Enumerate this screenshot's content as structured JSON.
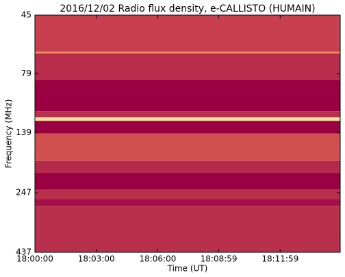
{
  "chart_data": {
    "type": "spectrogram",
    "title": "2016/12/02  Radio flux density, e-CALLISTO (HUMAIN)",
    "x_label": "Time (UT)",
    "y_label": "Frequency (MHz)",
    "xlim": [
      0,
      895
    ],
    "xticks": [
      {
        "value": 0,
        "label": "18:00:00"
      },
      {
        "value": 180,
        "label": "18:03:00"
      },
      {
        "value": 360,
        "label": "18:06:00"
      },
      {
        "value": 539,
        "label": "18:08:59"
      },
      {
        "value": 719,
        "label": "18:11:59"
      }
    ],
    "ylim": [
      45,
      437
    ],
    "yticks": [
      45,
      79,
      139,
      247,
      437
    ],
    "ylog": true,
    "yinverted": true,
    "bands": [
      {
        "range": [
          45,
          64
        ],
        "color": "#c8404f"
      },
      {
        "range": [
          64,
          65
        ],
        "color": "#f29060"
      },
      {
        "range": [
          65,
          84
        ],
        "color": "#b82c4c"
      },
      {
        "range": [
          84,
          113
        ],
        "color": "#9a0041"
      },
      {
        "range": [
          113,
          120
        ],
        "color": "#b8304c"
      },
      {
        "range": [
          120,
          124
        ],
        "color": "#fde4a0"
      },
      {
        "range": [
          124,
          140
        ],
        "color": "#9a0041"
      },
      {
        "range": [
          140,
          182
        ],
        "color": "#d0504f"
      },
      {
        "range": [
          182,
          204
        ],
        "color": "#b42a4b"
      },
      {
        "range": [
          204,
          240
        ],
        "color": "#9a0041"
      },
      {
        "range": [
          240,
          262
        ],
        "color": "#b8304c"
      },
      {
        "range": [
          262,
          280
        ],
        "color": "#a4104a"
      },
      {
        "range": [
          280,
          437
        ],
        "color": "#b8304c"
      }
    ]
  }
}
